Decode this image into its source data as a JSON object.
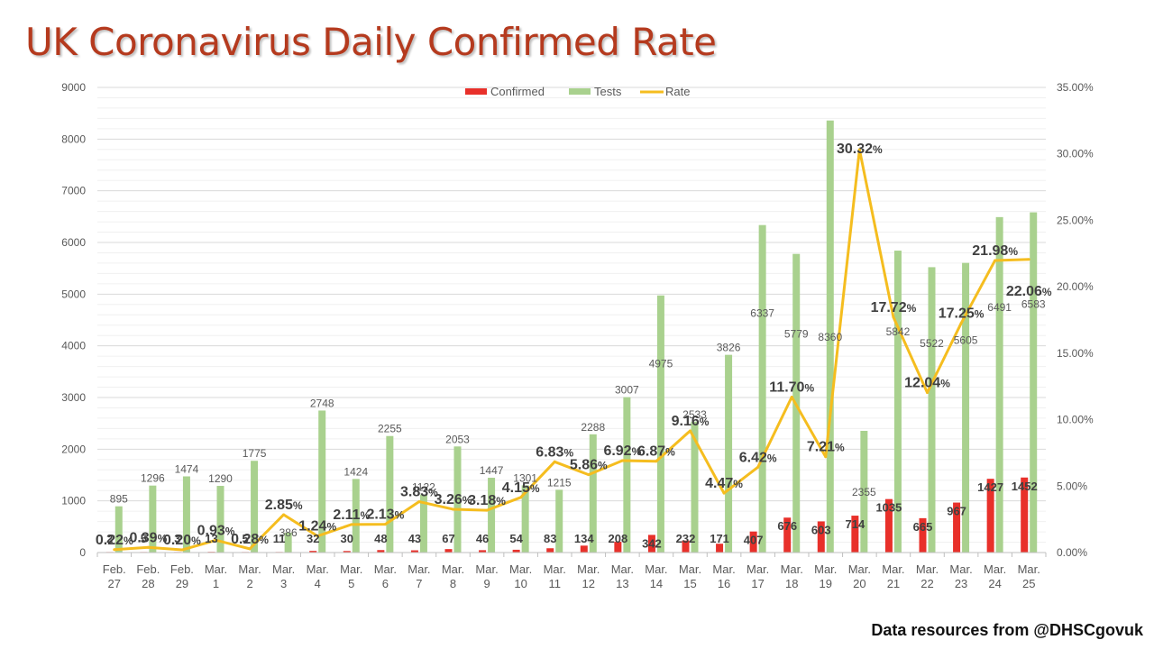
{
  "title": "UK Coronavirus Daily Confirmed Rate",
  "source": "Data resources from @DHSCgovuk",
  "colors": {
    "confirmed": "#e8302a",
    "tests": "#a9d18e",
    "rate": "#f5bd1f",
    "title": "#b53a1e"
  },
  "chart_data": {
    "type": "bar",
    "title": "UK Coronavirus Daily Confirmed Rate",
    "categories": [
      [
        "Feb.",
        "27"
      ],
      [
        "Feb.",
        "28"
      ],
      [
        "Feb.",
        "29"
      ],
      [
        "Mar.",
        "1"
      ],
      [
        "Mar.",
        "2"
      ],
      [
        "Mar.",
        "3"
      ],
      [
        "Mar.",
        "4"
      ],
      [
        "Mar.",
        "5"
      ],
      [
        "Mar.",
        "6"
      ],
      [
        "Mar.",
        "7"
      ],
      [
        "Mar.",
        "8"
      ],
      [
        "Mar.",
        "9"
      ],
      [
        "Mar.",
        "10"
      ],
      [
        "Mar.",
        "11"
      ],
      [
        "Mar.",
        "12"
      ],
      [
        "Mar.",
        "13"
      ],
      [
        "Mar.",
        "14"
      ],
      [
        "Mar.",
        "15"
      ],
      [
        "Mar.",
        "16"
      ],
      [
        "Mar.",
        "17"
      ],
      [
        "Mar.",
        "18"
      ],
      [
        "Mar.",
        "19"
      ],
      [
        "Mar.",
        "20"
      ],
      [
        "Mar.",
        "21"
      ],
      [
        "Mar.",
        "22"
      ],
      [
        "Mar.",
        "23"
      ],
      [
        "Mar.",
        "24"
      ],
      [
        "Mar.",
        "25"
      ]
    ],
    "series": [
      {
        "name": "Confirmed",
        "type": "bar",
        "axis": "left",
        "values": [
          2,
          5,
          3,
          13,
          5,
          11,
          32,
          30,
          48,
          43,
          67,
          46,
          54,
          83,
          134,
          208,
          342,
          232,
          171,
          407,
          676,
          603,
          714,
          1035,
          665,
          967,
          1427,
          1452
        ],
        "labels": [
          "2",
          "5",
          "3",
          "13",
          "5",
          "11",
          "32",
          "30",
          "48",
          "43",
          "67",
          "46",
          "54",
          "83",
          "134",
          "208",
          "342",
          "232",
          "171",
          "407",
          "676",
          "603",
          "714",
          "1035",
          "665",
          "967",
          "1427",
          "1452"
        ]
      },
      {
        "name": "Tests",
        "type": "bar",
        "axis": "left",
        "values": [
          895,
          1296,
          1474,
          1290,
          1775,
          386,
          2748,
          1424,
          2255,
          1122,
          2053,
          1447,
          1301,
          1215,
          2288,
          3007,
          4975,
          2533,
          3826,
          6337,
          5779,
          8360,
          2355,
          5842,
          5522,
          5605,
          6491,
          6583
        ],
        "labels": [
          "895",
          "1296",
          "1474",
          "1290",
          "1775",
          "386",
          "2748",
          "1424",
          "2255",
          "1122",
          "2053",
          "1447",
          "1301",
          "1215",
          "2288",
          "3007",
          "4975",
          "2533",
          "3826",
          "6337",
          "5779",
          "8360",
          "2355",
          "5842",
          "5522",
          "5605",
          "6491",
          "6583"
        ]
      },
      {
        "name": "Rate",
        "type": "line",
        "axis": "right",
        "values": [
          0.22,
          0.39,
          0.2,
          0.93,
          0.28,
          2.85,
          1.24,
          2.11,
          2.13,
          3.83,
          3.26,
          3.18,
          4.15,
          6.83,
          5.86,
          6.92,
          6.87,
          9.16,
          4.47,
          6.42,
          11.7,
          7.21,
          30.32,
          17.72,
          12.04,
          17.25,
          21.98,
          22.06
        ],
        "labels": [
          "0.22",
          "0.39",
          "0.20",
          "0.93",
          "0.28",
          "2.85",
          "1.24",
          "2.11",
          "2.13",
          "3.83",
          "3.26",
          "3.18",
          "4.15",
          "6.83",
          "5.86",
          "6.92",
          "6.87",
          "9.16",
          "4.47",
          "6.42",
          "11.70",
          "7.21",
          "30.32",
          "17.72",
          "12.04",
          "17.25",
          "21.98",
          "22.06"
        ]
      }
    ],
    "yleft": {
      "ticks": [
        "0",
        "1000",
        "2000",
        "3000",
        "4000",
        "5000",
        "6000",
        "7000",
        "8000",
        "9000"
      ],
      "range": [
        0,
        9000
      ],
      "step": 1000
    },
    "yright": {
      "ticks": [
        "0.00%",
        "5.00%",
        "10.00%",
        "15.00%",
        "20.00%",
        "25.00%",
        "30.00%",
        "35.00%"
      ],
      "range": [
        0,
        35
      ],
      "step": 5
    },
    "legend": {
      "position": "top",
      "entries": [
        "Confirmed",
        "Tests",
        "Rate"
      ]
    },
    "grid": true
  }
}
